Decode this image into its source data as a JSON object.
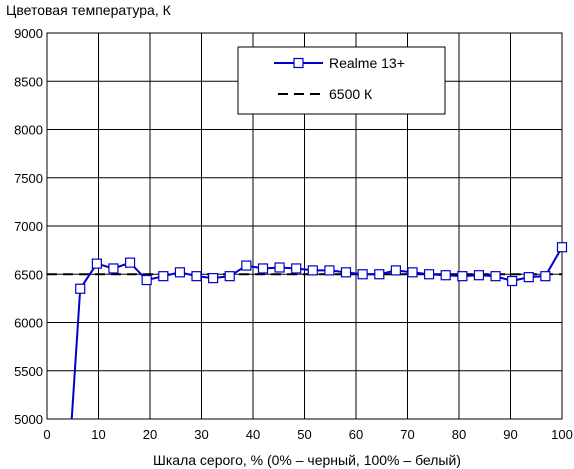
{
  "chart_data": {
    "type": "line",
    "title": "",
    "ylabel": "Цветовая температура, К",
    "xlabel": "Шкала серого, % (0% – черный, 100% – белый)",
    "xlim": [
      0,
      100
    ],
    "ylim": [
      5000,
      9000
    ],
    "x_ticks": [
      "0",
      "10",
      "20",
      "30",
      "40",
      "50",
      "60",
      "70",
      "80",
      "90",
      "100"
    ],
    "y_ticks": [
      "5000",
      "5500",
      "6000",
      "6500",
      "7000",
      "7500",
      "8000",
      "8500",
      "9000"
    ],
    "grid": true,
    "legend_position": "top-right",
    "series": [
      {
        "name": "Realme 13+",
        "color": "#0000cc",
        "marker": "square",
        "x": [
          6.45,
          9.68,
          12.9,
          16.13,
          19.35,
          22.58,
          25.81,
          29.03,
          32.26,
          35.48,
          38.71,
          41.94,
          45.16,
          48.39,
          51.61,
          54.84,
          58.06,
          61.29,
          64.52,
          67.74,
          70.97,
          74.19,
          77.42,
          80.65,
          83.87,
          87.1,
          90.32,
          93.55,
          96.77,
          100
        ],
        "y": [
          6350,
          6610,
          6560,
          6620,
          6440,
          6480,
          6520,
          6480,
          6460,
          6480,
          6590,
          6560,
          6570,
          6560,
          6540,
          6540,
          6520,
          6500,
          6500,
          6540,
          6520,
          6500,
          6490,
          6480,
          6490,
          6480,
          6430,
          6470,
          6480,
          6780
        ],
        "line_start": [
          4.8,
          5000
        ]
      },
      {
        "name": "6500 К",
        "color": "#000000",
        "dash": true,
        "x": [
          0,
          100
        ],
        "y": [
          6500,
          6500
        ]
      }
    ]
  }
}
